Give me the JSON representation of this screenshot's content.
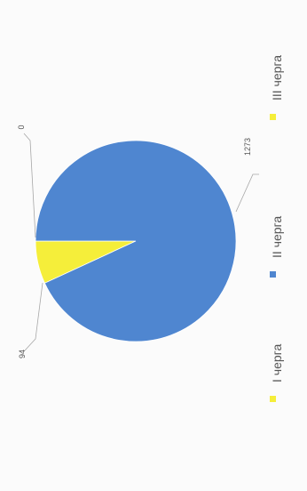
{
  "chart_data": {
    "type": "pie",
    "categories": [
      "I черга",
      "II черга",
      "III черга"
    ],
    "values": [
      94,
      1273,
      0
    ],
    "data_labels": [
      "94",
      "1273",
      "0"
    ],
    "colors": [
      "#f5ee3a",
      "#4f86d0",
      "#f5ee3a"
    ],
    "legend_position": "bottom (rotated 90° counter-clockwise)",
    "rotation": "chart shown rotated 90° counter-clockwise"
  }
}
